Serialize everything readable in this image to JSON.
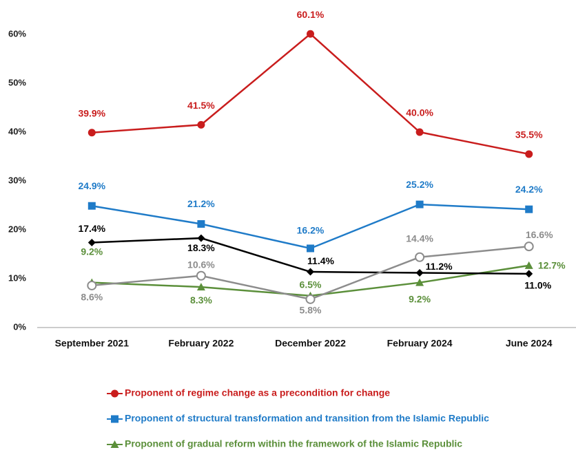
{
  "chart_data": {
    "type": "line",
    "categories": [
      "September 2021",
      "February 2022",
      "December 2022",
      "February 2024",
      "June 2024"
    ],
    "ylim": [
      0,
      60
    ],
    "yticks": [
      {
        "value": 0,
        "label": "0%"
      },
      {
        "value": 10,
        "label": "10%"
      },
      {
        "value": 20,
        "label": "20%"
      },
      {
        "value": 30,
        "label": "30%"
      },
      {
        "value": 40,
        "label": "40%"
      },
      {
        "value": 50,
        "label": "50%"
      },
      {
        "value": 60,
        "label": "60%"
      }
    ],
    "grid": false,
    "series": [
      {
        "name": "Proponent of regime change as a precondition for change",
        "color": "#c91d1d",
        "marker": "circle",
        "values": [
          39.9,
          41.5,
          60.1,
          40.0,
          35.5
        ],
        "value_labels": [
          "39.9%",
          "41.5%",
          "60.1%",
          "40.0%",
          "35.5%"
        ]
      },
      {
        "name": "Proponent of structural transformation and transition from the Islamic Republic",
        "color": "#1f7bc8",
        "marker": "square",
        "values": [
          24.9,
          21.2,
          16.2,
          25.2,
          24.2
        ],
        "value_labels": [
          "24.9%",
          "21.2%",
          "16.2%",
          "25.2%",
          "24.2%"
        ]
      },
      {
        "name": "Proponent of gradual reform within the framework of the Islamic Republic",
        "color": "#5b8f3a",
        "marker": "triangle",
        "values": [
          9.2,
          8.3,
          6.5,
          9.2,
          12.7
        ],
        "value_labels": [
          "9.2%",
          "8.3%",
          "6.5%",
          "9.2%",
          "12.7%"
        ]
      },
      {
        "color": "#000000",
        "marker": "diamond",
        "values": [
          17.4,
          18.3,
          11.4,
          11.2,
          11.0
        ],
        "value_labels": [
          "17.4%",
          "18.3%",
          "11.4%",
          "11.2%",
          "11.0%"
        ]
      },
      {
        "color": "#8c8c8c",
        "marker": "open-circle",
        "values": [
          8.6,
          10.6,
          5.8,
          14.4,
          16.6
        ],
        "value_labels": [
          "8.6%",
          "10.6%",
          "5.8%",
          "14.4%",
          "16.6%"
        ]
      }
    ]
  }
}
